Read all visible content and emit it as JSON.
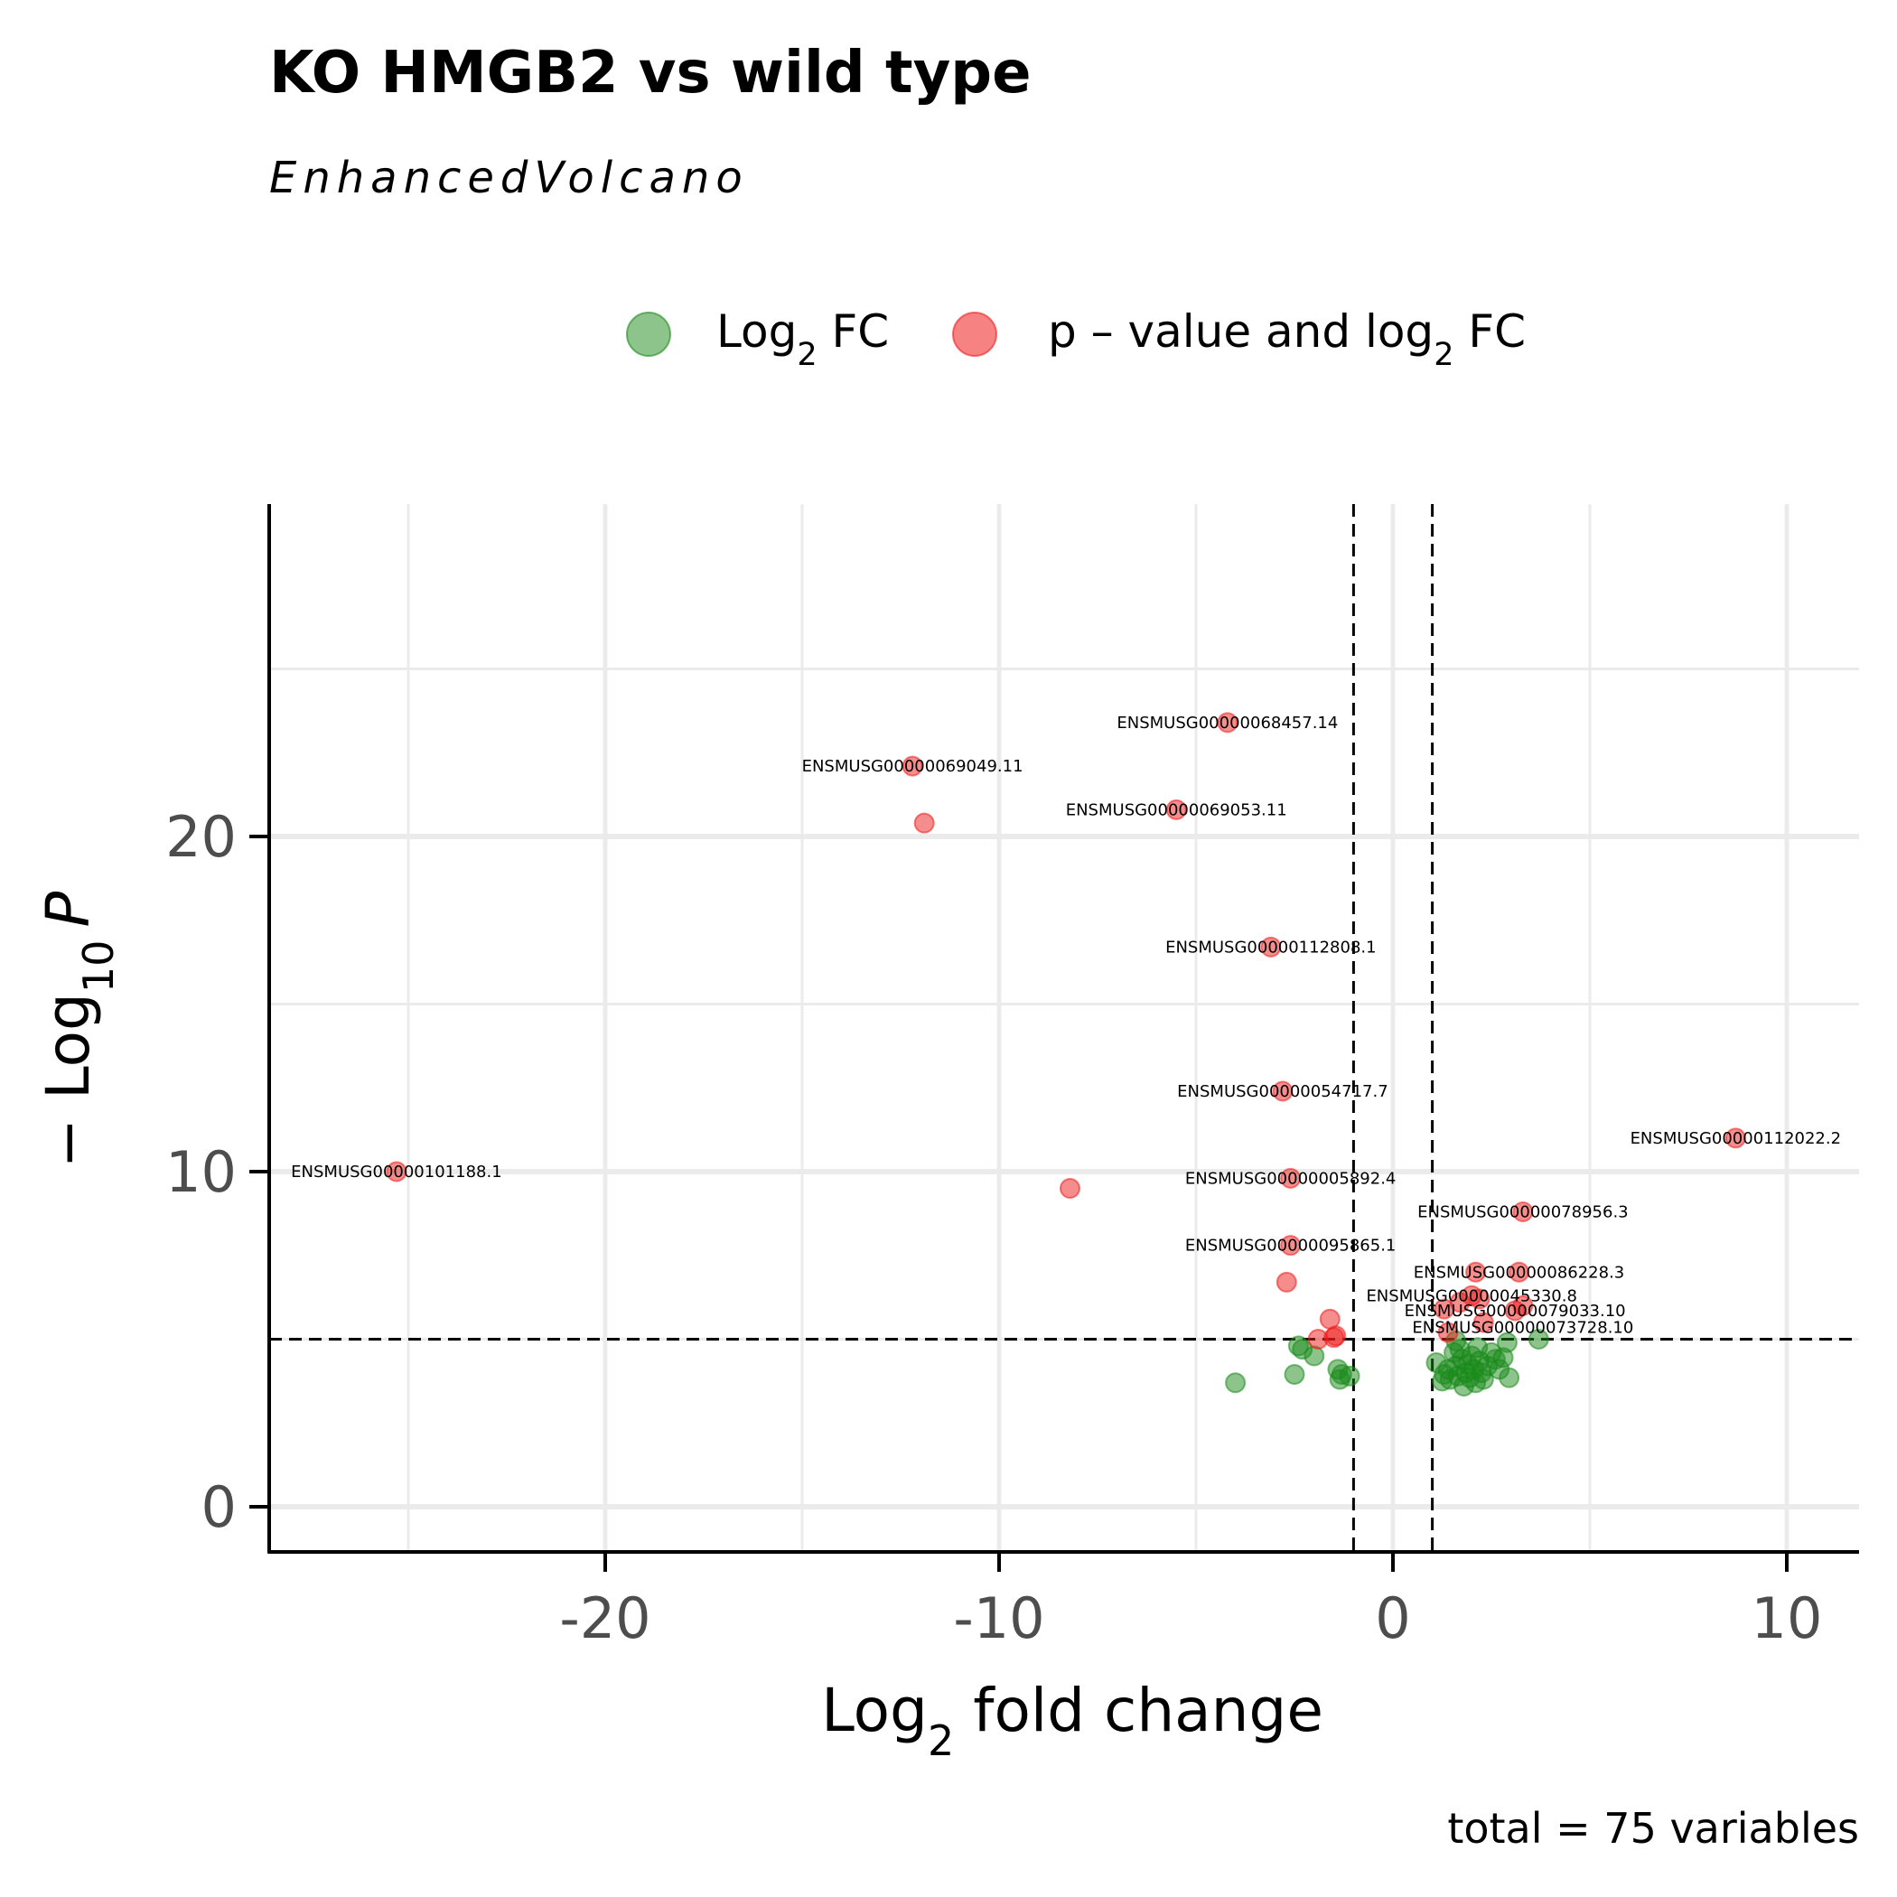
{
  "chart_data": {
    "type": "scatter",
    "title": "KO HMGB2 vs wild type",
    "subtitle": "EnhancedVolcano",
    "xlabel": {
      "base": "Log",
      "sub": "2",
      "rest": " fold change"
    },
    "ylabel": {
      "prefix": "− Log",
      "sub": "10",
      "var": "P"
    },
    "caption": "total = 75 variables",
    "xlim": [
      -28.6,
      12
    ],
    "ylim": [
      -1.4,
      30
    ],
    "x_ticks": [
      -20,
      -10,
      0,
      10
    ],
    "x_tick_labels": [
      "-20",
      "-10",
      "0",
      "10"
    ],
    "y_ticks": [
      0,
      10,
      20
    ],
    "y_tick_labels": [
      "0",
      "10",
      "20"
    ],
    "grid": true,
    "fc_cutoff": 1,
    "p_cutoff_neglog10": 5,
    "legend": {
      "position": "top",
      "entries": [
        {
          "label_base": "Log",
          "label_sub": "2",
          "label_rest": " FC",
          "color": "#1a8a1a"
        },
        {
          "label_base": "p – value and log",
          "label_sub": "2",
          "label_rest": " FC",
          "color": "#ee1c1c"
        }
      ]
    },
    "colors": {
      "log2fc": "#1a8a1a",
      "p_and_fc": "#ee1c1c"
    },
    "series": [
      {
        "name": "Log2 FC",
        "points": [
          [
            -4.0,
            3.7
          ],
          [
            -2.5,
            3.95
          ],
          [
            -2.4,
            4.8
          ],
          [
            -2.3,
            4.7
          ],
          [
            -2.0,
            4.5
          ],
          [
            -1.4,
            4.1
          ],
          [
            -1.35,
            3.8
          ],
          [
            -1.3,
            3.95
          ],
          [
            -1.1,
            3.9
          ],
          [
            1.1,
            4.3
          ],
          [
            1.25,
            3.75
          ],
          [
            1.3,
            3.95
          ],
          [
            1.4,
            4.1
          ],
          [
            1.45,
            3.8
          ],
          [
            1.55,
            4.6
          ],
          [
            1.6,
            4.2
          ],
          [
            1.65,
            3.9
          ],
          [
            1.7,
            4.7
          ],
          [
            1.75,
            4.4
          ],
          [
            1.8,
            3.6
          ],
          [
            1.85,
            4.0
          ],
          [
            1.9,
            4.25
          ],
          [
            1.95,
            3.85
          ],
          [
            2.0,
            4.5
          ],
          [
            2.05,
            4.1
          ],
          [
            2.1,
            3.7
          ],
          [
            2.2,
            4.35
          ],
          [
            2.25,
            4.0
          ],
          [
            2.3,
            3.8
          ],
          [
            2.4,
            4.2
          ],
          [
            2.5,
            4.6
          ],
          [
            2.6,
            4.4
          ],
          [
            2.7,
            4.1
          ],
          [
            2.8,
            4.45
          ],
          [
            2.9,
            4.9
          ],
          [
            2.95,
            3.85
          ],
          [
            3.7,
            5.0
          ],
          [
            1.6,
            4.95
          ],
          [
            2.15,
            4.75
          ]
        ]
      },
      {
        "name": "p – value and log2 FC",
        "points": [
          [
            -25.3,
            10.0
          ],
          [
            -12.2,
            22.1
          ],
          [
            -11.9,
            20.4
          ],
          [
            -8.2,
            9.5
          ],
          [
            -4.2,
            23.4
          ],
          [
            -5.5,
            20.8
          ],
          [
            -3.1,
            16.7
          ],
          [
            -2.8,
            12.4
          ],
          [
            -2.6,
            9.8
          ],
          [
            -2.6,
            7.8
          ],
          [
            -2.7,
            6.7
          ],
          [
            -1.6,
            5.6
          ],
          [
            -1.9,
            5.0
          ],
          [
            -1.5,
            5.05
          ],
          [
            -1.45,
            5.1
          ],
          [
            8.7,
            11.0
          ],
          [
            3.3,
            8.8
          ],
          [
            2.1,
            7.0
          ],
          [
            3.2,
            7.0
          ],
          [
            2.0,
            6.3
          ],
          [
            2.2,
            6.2
          ],
          [
            1.3,
            5.9
          ],
          [
            1.7,
            6.1
          ],
          [
            3.1,
            5.85
          ],
          [
            3.3,
            6.0
          ],
          [
            2.3,
            5.5
          ],
          [
            1.4,
            5.2
          ]
        ]
      }
    ],
    "annotations": [
      {
        "x": -25.3,
        "y": 10.0,
        "text": "ENSMUSG00000101188.1"
      },
      {
        "x": -12.2,
        "y": 22.1,
        "text": "ENSMUSG00000069049.11"
      },
      {
        "x": -4.2,
        "y": 23.4,
        "text": "ENSMUSG00000068457.14"
      },
      {
        "x": -5.5,
        "y": 20.8,
        "text": "ENSMUSG00000069053.11"
      },
      {
        "x": -3.1,
        "y": 16.7,
        "text": "ENSMUSG00000112808.1"
      },
      {
        "x": -2.8,
        "y": 12.4,
        "text": "ENSMUSG00000054717.7"
      },
      {
        "x": -2.6,
        "y": 9.8,
        "text": "ENSMUSG00000005892.4"
      },
      {
        "x": -2.6,
        "y": 7.8,
        "text": "ENSMUSG00000095865.1"
      },
      {
        "x": 8.7,
        "y": 11.0,
        "text": "ENSMUSG00000112022.2"
      },
      {
        "x": 3.3,
        "y": 8.8,
        "text": "ENSMUSG00000078956.3"
      },
      {
        "x": 3.2,
        "y": 7.0,
        "text": "ENSMUSG00000086228.3"
      },
      {
        "x": 2.0,
        "y": 6.3,
        "text": "ENSMUSG00000045330.8"
      },
      {
        "x": 3.1,
        "y": 5.85,
        "text": "ENSMUSG00000079033.10"
      },
      {
        "x": 3.3,
        "y": 5.35,
        "text": "ENSMUSG00000073728.10"
      }
    ]
  }
}
